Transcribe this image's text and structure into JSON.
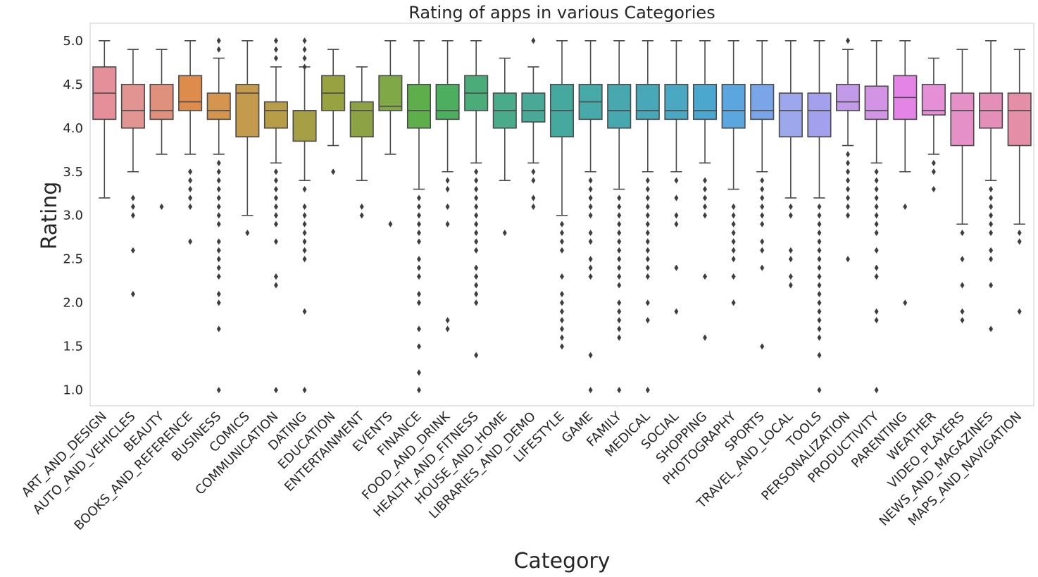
{
  "chart_data": {
    "type": "box",
    "title": "Rating of apps in various Categories",
    "xlabel": "Category",
    "ylabel": "Rating",
    "ylim": [
      0.82,
      5.2
    ],
    "yticks": [
      "1.0",
      "1.5",
      "2.0",
      "2.5",
      "3.0",
      "3.5",
      "4.0",
      "4.5",
      "5.0"
    ],
    "grid": false,
    "legend": "none",
    "series": [
      {
        "category": "ART_AND_DESIGN",
        "color": "#e48f99",
        "whisker_low": 3.2,
        "q1": 4.1,
        "median": 4.4,
        "q3": 4.7,
        "whisker_high": 5.0,
        "outliers": []
      },
      {
        "category": "AUTO_AND_VEHICLES",
        "color": "#e29493",
        "whisker_low": 3.5,
        "q1": 4.0,
        "median": 4.2,
        "q3": 4.5,
        "whisker_high": 4.9,
        "outliers": [
          3.2,
          3.1,
          3.0,
          2.6,
          2.1
        ]
      },
      {
        "category": "BEAUTY",
        "color": "#e0917d",
        "whisker_low": 3.7,
        "q1": 4.1,
        "median": 4.2,
        "q3": 4.5,
        "whisker_high": 4.9,
        "outliers": [
          3.1
        ]
      },
      {
        "category": "BOOKS_AND_REFERENCE",
        "color": "#de8c4b",
        "whisker_low": 3.7,
        "q1": 4.2,
        "median": 4.3,
        "q3": 4.6,
        "whisker_high": 5.0,
        "outliers": [
          3.5,
          3.4,
          3.3,
          3.2,
          3.1,
          2.7
        ]
      },
      {
        "category": "BUSINESS",
        "color": "#d4954f",
        "whisker_low": 3.7,
        "q1": 4.1,
        "median": 4.2,
        "q3": 4.4,
        "whisker_high": 4.8,
        "outliers": [
          5.0,
          4.9,
          3.6,
          3.5,
          3.4,
          3.3,
          3.2,
          3.1,
          3.0,
          2.9,
          2.7,
          2.6,
          2.5,
          2.4,
          2.3,
          2.1,
          2.0,
          1.7,
          1.0
        ]
      },
      {
        "category": "COMICS",
        "color": "#c49a4c",
        "whisker_low": 3.0,
        "q1": 3.9,
        "median": 4.4,
        "q3": 4.5,
        "whisker_high": 5.0,
        "outliers": [
          2.8
        ]
      },
      {
        "category": "COMMUNICATION",
        "color": "#b89d48",
        "whisker_low": 3.6,
        "q1": 4.0,
        "median": 4.2,
        "q3": 4.3,
        "whisker_high": 4.7,
        "outliers": [
          5.0,
          4.9,
          4.8,
          3.5,
          3.4,
          3.3,
          3.2,
          3.1,
          3.0,
          2.9,
          2.7,
          2.3,
          2.2,
          1.0
        ]
      },
      {
        "category": "DATING",
        "color": "#a69f45",
        "whisker_low": 3.4,
        "q1": 3.85,
        "median": 4.2,
        "q3": 4.2,
        "whisker_high": 4.7,
        "outliers": [
          5.0,
          4.9,
          4.8,
          4.7,
          3.3,
          3.1,
          3.0,
          2.9,
          2.8,
          2.7,
          2.6,
          2.5,
          1.9,
          1.0
        ]
      },
      {
        "category": "EDUCATION",
        "color": "#98a241",
        "whisker_low": 3.8,
        "q1": 4.2,
        "median": 4.4,
        "q3": 4.6,
        "whisker_high": 4.9,
        "outliers": [
          3.5
        ]
      },
      {
        "category": "ENTERTAINMENT",
        "color": "#8da244",
        "whisker_low": 3.4,
        "q1": 3.9,
        "median": 4.2,
        "q3": 4.3,
        "whisker_high": 4.7,
        "outliers": [
          3.1,
          3.0
        ]
      },
      {
        "category": "EVENTS",
        "color": "#80a846",
        "whisker_low": 3.7,
        "q1": 4.2,
        "median": 4.25,
        "q3": 4.6,
        "whisker_high": 5.0,
        "outliers": [
          2.9
        ]
      },
      {
        "category": "FINANCE",
        "color": "#5fae4c",
        "whisker_low": 3.3,
        "q1": 4.0,
        "median": 4.2,
        "q3": 4.5,
        "whisker_high": 5.0,
        "outliers": [
          3.2,
          3.1,
          3.0,
          2.9,
          2.8,
          2.7,
          2.5,
          2.4,
          2.3,
          2.1,
          2.0,
          1.7,
          1.5,
          1.2,
          1.0
        ]
      },
      {
        "category": "FOOD_AND_DRINK",
        "color": "#4cae5e",
        "whisker_low": 3.5,
        "q1": 4.1,
        "median": 4.2,
        "q3": 4.5,
        "whisker_high": 5.0,
        "outliers": [
          3.4,
          3.3,
          3.1,
          2.9,
          1.8,
          1.7
        ]
      },
      {
        "category": "HEALTH_AND_FITNESS",
        "color": "#4bac7a",
        "whisker_low": 3.6,
        "q1": 4.2,
        "median": 4.4,
        "q3": 4.6,
        "whisker_high": 5.0,
        "outliers": [
          3.5,
          3.4,
          3.3,
          3.2,
          3.1,
          3.0,
          2.9,
          2.8,
          2.7,
          2.6,
          2.4,
          2.3,
          2.2,
          2.1,
          2.0,
          1.4
        ]
      },
      {
        "category": "HOUSE_AND_HOME",
        "color": "#4aab8a",
        "whisker_low": 3.4,
        "q1": 4.0,
        "median": 4.2,
        "q3": 4.4,
        "whisker_high": 4.8,
        "outliers": [
          2.8
        ]
      },
      {
        "category": "LIBRARIES_AND_DEMO",
        "color": "#48aa96",
        "whisker_low": 3.6,
        "q1": 4.07,
        "median": 4.2,
        "q3": 4.4,
        "whisker_high": 4.7,
        "outliers": [
          5.0,
          3.5,
          3.4,
          3.2,
          3.1
        ]
      },
      {
        "category": "LIFESTYLE",
        "color": "#46a99f",
        "whisker_low": 3.0,
        "q1": 3.9,
        "median": 4.2,
        "q3": 4.5,
        "whisker_high": 5.0,
        "outliers": [
          2.9,
          2.8,
          2.7,
          2.6,
          2.3,
          2.1,
          2.0,
          1.9,
          1.8,
          1.7,
          1.6,
          1.5
        ]
      },
      {
        "category": "GAME",
        "color": "#47a9a8",
        "whisker_low": 3.5,
        "q1": 4.1,
        "median": 4.3,
        "q3": 4.5,
        "whisker_high": 5.0,
        "outliers": [
          3.4,
          3.3,
          3.2,
          3.1,
          3.0,
          2.8,
          2.7,
          2.5,
          2.4,
          2.3,
          1.4,
          1.0
        ]
      },
      {
        "category": "FAMILY",
        "color": "#48a8b0",
        "whisker_low": 3.3,
        "q1": 4.0,
        "median": 4.2,
        "q3": 4.5,
        "whisker_high": 5.0,
        "outliers": [
          3.2,
          3.1,
          3.0,
          2.9,
          2.8,
          2.7,
          2.6,
          2.5,
          2.4,
          2.3,
          2.2,
          2.0,
          1.9,
          1.8,
          1.7,
          1.6,
          1.0
        ]
      },
      {
        "category": "MEDICAL",
        "color": "#49a8b8",
        "whisker_low": 3.5,
        "q1": 4.1,
        "median": 4.2,
        "q3": 4.5,
        "whisker_high": 5.0,
        "outliers": [
          3.4,
          3.3,
          3.2,
          3.1,
          3.0,
          2.9,
          2.8,
          2.7,
          2.6,
          2.5,
          2.4,
          2.3,
          2.0,
          1.8,
          1.0
        ]
      },
      {
        "category": "SOCIAL",
        "color": "#4aa8c2",
        "whisker_low": 3.5,
        "q1": 4.1,
        "median": 4.2,
        "q3": 4.5,
        "whisker_high": 5.0,
        "outliers": [
          3.4,
          3.2,
          3.0,
          2.9,
          2.4,
          1.9
        ]
      },
      {
        "category": "SHOPPING",
        "color": "#4ca7cf",
        "whisker_low": 3.6,
        "q1": 4.1,
        "median": 4.2,
        "q3": 4.5,
        "whisker_high": 5.0,
        "outliers": [
          3.4,
          3.3,
          3.2,
          3.1,
          3.0,
          2.3,
          1.6
        ]
      },
      {
        "category": "PHOTOGRAPHY",
        "color": "#5ba6df",
        "whisker_low": 3.3,
        "q1": 4.0,
        "median": 4.2,
        "q3": 4.5,
        "whisker_high": 5.0,
        "outliers": [
          3.1,
          3.0,
          2.9,
          2.8,
          2.7,
          2.6,
          2.5,
          2.3,
          2.0
        ]
      },
      {
        "category": "SPORTS",
        "color": "#7aa5e8",
        "whisker_low": 3.5,
        "q1": 4.1,
        "median": 4.2,
        "q3": 4.5,
        "whisker_high": 5.0,
        "outliers": [
          3.4,
          3.3,
          3.2,
          3.1,
          3.0,
          2.9,
          2.7,
          2.6,
          2.4,
          1.5
        ]
      },
      {
        "category": "TRAVEL_AND_LOCAL",
        "color": "#9ca7ec",
        "whisker_low": 3.2,
        "q1": 3.9,
        "median": 4.2,
        "q3": 4.4,
        "whisker_high": 5.0,
        "outliers": [
          3.1,
          3.0,
          2.6,
          2.5,
          2.3,
          2.2
        ]
      },
      {
        "category": "TOOLS",
        "color": "#a3a1ed",
        "whisker_low": 3.2,
        "q1": 3.9,
        "median": 4.2,
        "q3": 4.4,
        "whisker_high": 5.0,
        "outliers": [
          3.1,
          3.0,
          2.9,
          2.8,
          2.7,
          2.6,
          2.5,
          2.4,
          2.3,
          2.2,
          2.1,
          2.0,
          1.9,
          1.8,
          1.7,
          1.6,
          1.4,
          1.0
        ]
      },
      {
        "category": "PERSONALIZATION",
        "color": "#c19ae8",
        "whisker_low": 3.8,
        "q1": 4.2,
        "median": 4.3,
        "q3": 4.5,
        "whisker_high": 4.9,
        "outliers": [
          5.0,
          3.7,
          3.6,
          3.5,
          3.4,
          3.3,
          3.2,
          3.1,
          3.0,
          2.5
        ]
      },
      {
        "category": "PRODUCTIVITY",
        "color": "#d394e6",
        "whisker_low": 3.6,
        "q1": 4.1,
        "median": 4.2,
        "q3": 4.48,
        "whisker_high": 5.0,
        "outliers": [
          3.5,
          3.4,
          3.3,
          3.2,
          3.1,
          3.0,
          2.9,
          2.8,
          2.6,
          2.4,
          2.3,
          1.9,
          1.8,
          1.0
        ]
      },
      {
        "category": "PARENTING",
        "color": "#e484e6",
        "whisker_low": 3.5,
        "q1": 4.1,
        "median": 4.35,
        "q3": 4.6,
        "whisker_high": 5.0,
        "outliers": [
          3.1,
          2.0
        ]
      },
      {
        "category": "WEATHER",
        "color": "#e48fd6",
        "whisker_low": 3.7,
        "q1": 4.15,
        "median": 4.2,
        "q3": 4.5,
        "whisker_high": 4.8,
        "outliers": [
          3.6,
          3.5,
          3.3
        ]
      },
      {
        "category": "VIDEO_PLAYERS",
        "color": "#e591c7",
        "whisker_low": 2.9,
        "q1": 3.8,
        "median": 4.2,
        "q3": 4.4,
        "whisker_high": 4.9,
        "outliers": [
          2.8,
          2.5,
          2.2,
          1.9,
          1.8
        ]
      },
      {
        "category": "NEWS_AND_MAGAZINES",
        "color": "#e48fb7",
        "whisker_low": 3.4,
        "q1": 4.0,
        "median": 4.2,
        "q3": 4.4,
        "whisker_high": 5.0,
        "outliers": [
          3.3,
          3.2,
          3.1,
          3.0,
          2.9,
          2.8,
          2.6,
          2.5,
          2.2,
          1.7
        ]
      },
      {
        "category": "MAPS_AND_NAVIGATION",
        "color": "#e48ea7",
        "whisker_low": 2.9,
        "q1": 3.8,
        "median": 4.2,
        "q3": 4.4,
        "whisker_high": 4.9,
        "outliers": [
          2.8,
          2.7,
          1.9
        ]
      }
    ]
  }
}
